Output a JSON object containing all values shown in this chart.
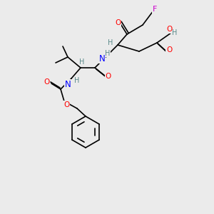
{
  "background_color": "#ebebeb",
  "bond_color": "#000000",
  "atom_colors": {
    "O": "#ff0000",
    "N": "#0000ff",
    "F": "#cc00cc",
    "H": "#5a8a8a",
    "C": "#000000"
  },
  "font_size": 7.5
}
